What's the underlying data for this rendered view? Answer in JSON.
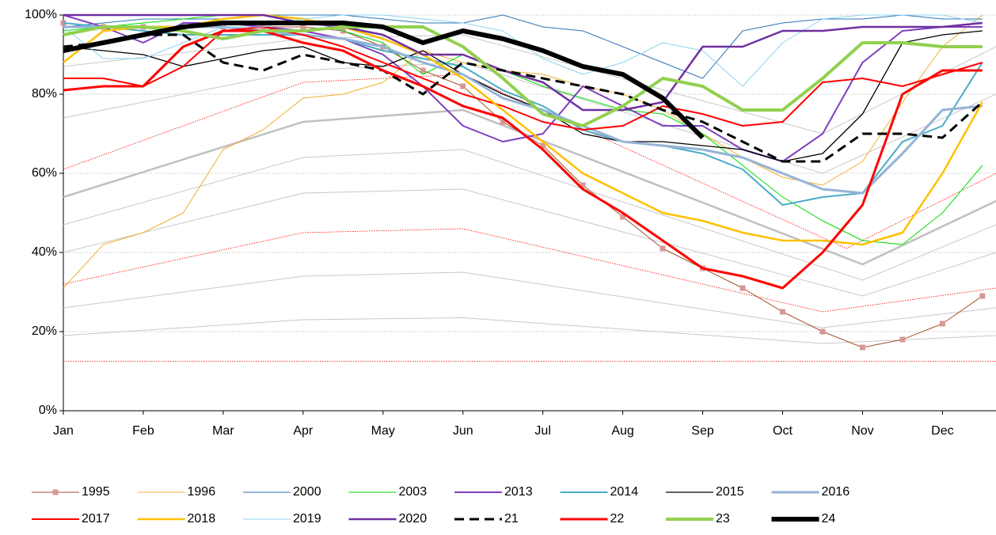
{
  "chart_data": {
    "type": "line",
    "xlim": [
      0,
      11.67
    ],
    "xticks": [
      {
        "value": 0,
        "label": "Jan"
      },
      {
        "value": 1,
        "label": "Feb"
      },
      {
        "value": 2,
        "label": "Mar"
      },
      {
        "value": 3,
        "label": "Apr"
      },
      {
        "value": 4,
        "label": "May"
      },
      {
        "value": 5,
        "label": "Jun"
      },
      {
        "value": 6,
        "label": "Jul"
      },
      {
        "value": 7,
        "label": "Aug"
      },
      {
        "value": 8,
        "label": "Sep"
      },
      {
        "value": 9,
        "label": "Oct"
      },
      {
        "value": 10,
        "label": "Nov"
      },
      {
        "value": 11,
        "label": "Dec"
      }
    ],
    "ylim": [
      0,
      100
    ],
    "yticks": [
      {
        "value": 0,
        "label": "0%"
      },
      {
        "value": 20,
        "label": "20%"
      },
      {
        "value": 40,
        "label": "40%"
      },
      {
        "value": 60,
        "label": "60%"
      },
      {
        "value": 80,
        "label": "80%"
      },
      {
        "value": 100,
        "label": "100%"
      }
    ],
    "grid": true,
    "legend": "bottom",
    "x": [
      0,
      0.5,
      1,
      1.5,
      2,
      2.5,
      3,
      3.5,
      4,
      4.5,
      5,
      5.5,
      6,
      6.5,
      7,
      7.5,
      8,
      8.5,
      9,
      9.5,
      10,
      10.5,
      11,
      11.5
    ],
    "reference_lines": [
      {
        "color": "#c8c8c8",
        "width": 1,
        "x": [
          0,
          3,
          5,
          9.5,
          11.67
        ],
        "values": [
          19,
          23,
          23.5,
          17,
          19
        ]
      },
      {
        "color": "#c8c8c8",
        "width": 1,
        "x": [
          0,
          3,
          5,
          9.5,
          11.67
        ],
        "values": [
          26,
          34,
          35,
          21,
          26
        ]
      },
      {
        "color": "#c8c8c8",
        "width": 1,
        "x": [
          0,
          3,
          5,
          10,
          11.67
        ],
        "values": [
          40,
          55,
          56,
          29,
          40
        ]
      },
      {
        "color": "#c8c8c8",
        "width": 1,
        "x": [
          0,
          3,
          5,
          10,
          11.67
        ],
        "values": [
          47,
          64,
          66,
          33,
          47
        ]
      },
      {
        "color": "#c0c0c0",
        "width": 2.5,
        "x": [
          0,
          3,
          5,
          10,
          11.67
        ],
        "values": [
          54,
          73,
          76,
          37,
          53
        ]
      },
      {
        "color": "#c8c8c8",
        "width": 1,
        "x": [
          0,
          3,
          5,
          9.5,
          11.67
        ],
        "values": [
          74,
          86,
          88,
          60,
          80
        ]
      },
      {
        "color": "#c8c8c8",
        "width": 1,
        "x": [
          0,
          3,
          5,
          9.5,
          11.67
        ],
        "values": [
          87,
          94,
          95,
          70,
          92
        ]
      },
      {
        "color": "#ff0000",
        "width": 0.8,
        "dotted": true,
        "x": [
          0,
          3,
          5,
          9.8,
          11.67
        ],
        "values": [
          61,
          83,
          85,
          41,
          60
        ]
      },
      {
        "color": "#ff0000",
        "width": 0.8,
        "dotted": true,
        "x": [
          0,
          3,
          5,
          9.5,
          11.67
        ],
        "values": [
          32,
          45,
          46,
          25,
          31
        ]
      },
      {
        "color": "#ff0000",
        "width": 0.8,
        "dotted": true,
        "x": [
          0,
          11.67
        ],
        "values": [
          12.5,
          12.5
        ]
      }
    ],
    "series": [
      {
        "name": "1995",
        "color": "#a0522d",
        "marker": "square",
        "marker_color": "#d99795",
        "width": 1,
        "values": [
          98,
          97,
          97,
          97,
          97,
          97,
          97,
          96,
          92,
          86,
          82,
          73,
          67,
          57,
          49,
          41,
          36,
          31,
          25,
          20,
          16,
          18,
          22,
          29
        ]
      },
      {
        "name": "1996",
        "color": "#f0b030",
        "width": 1,
        "values": [
          31,
          42,
          45,
          50,
          66,
          71,
          79,
          80,
          83,
          91,
          88,
          86,
          85,
          82,
          80,
          76,
          70,
          64,
          59,
          57,
          63,
          78,
          92,
          100
        ]
      },
      {
        "name": "2000",
        "color": "#2e75b6",
        "width": 1,
        "values": [
          97,
          98,
          99,
          99,
          99,
          100,
          100,
          100,
          99,
          98,
          98,
          100,
          97,
          96,
          92,
          88,
          84,
          96,
          98,
          99,
          99,
          100,
          99,
          99
        ]
      },
      {
        "name": "2003",
        "color": "#00dd00",
        "width": 1,
        "values": [
          96,
          97,
          98,
          99,
          100,
          100,
          99,
          96,
          93,
          85,
          90,
          86,
          82,
          79,
          76,
          75,
          70,
          62,
          54,
          48,
          43,
          42,
          50,
          62
        ]
      },
      {
        "name": "2013",
        "color": "#7f3fbf",
        "width": 2,
        "values": [
          100,
          97,
          93,
          98,
          98,
          97,
          96,
          94,
          90,
          82,
          72,
          68,
          70,
          82,
          77,
          72,
          72,
          66,
          63,
          70,
          88,
          96,
          97,
          97
        ]
      },
      {
        "name": "2014",
        "color": "#4bacc6",
        "width": 2,
        "values": [
          98,
          97,
          96,
          95,
          95,
          95,
          95,
          94,
          91,
          89,
          87,
          81,
          77,
          71,
          68,
          67,
          65,
          61,
          52,
          54,
          55,
          68,
          72,
          88
        ]
      },
      {
        "name": "2015",
        "color": "#000000",
        "width": 1.3,
        "values": [
          92,
          91,
          90,
          87,
          89,
          91,
          92,
          88,
          87,
          91,
          85,
          80,
          76,
          70,
          68,
          68,
          67,
          66,
          63,
          65,
          75,
          93,
          95,
          96
        ]
      },
      {
        "name": "2016",
        "color": "#95b3d7",
        "width": 3,
        "values": [
          97,
          97,
          97,
          97,
          97,
          96,
          95,
          94,
          92,
          88,
          85,
          79,
          76,
          72,
          68,
          67,
          66,
          64,
          60,
          56,
          55,
          65,
          76,
          77
        ]
      },
      {
        "name": "2017",
        "color": "#ff0000",
        "width": 2,
        "values": [
          84,
          84,
          82,
          87,
          96,
          97,
          95,
          92,
          88,
          84,
          80,
          77,
          73,
          71,
          72,
          77,
          75,
          72,
          73,
          83,
          84,
          82,
          85,
          88
        ]
      },
      {
        "name": "2018",
        "color": "#ffc000",
        "width": 2.5,
        "values": [
          88,
          96,
          97,
          97,
          99,
          100,
          99,
          97,
          94,
          90,
          84,
          76,
          68,
          60,
          55,
          50,
          48,
          45,
          43,
          43,
          42,
          45,
          60,
          78
        ]
      },
      {
        "name": "2019",
        "color": "#8dd3f0",
        "width": 1,
        "values": [
          97,
          89,
          89,
          93,
          97,
          97,
          99,
          100,
          100,
          99,
          98,
          96,
          89,
          85,
          88,
          93,
          91,
          82,
          93,
          99,
          100,
          100,
          100,
          98
        ]
      },
      {
        "name": "2020",
        "color": "#7030a0",
        "width": 2.5,
        "values": [
          100,
          100,
          100,
          100,
          100,
          100,
          98,
          97,
          95,
          90,
          90,
          86,
          83,
          76,
          76,
          78,
          92,
          92,
          96,
          96,
          97,
          97,
          97,
          98
        ]
      },
      {
        "name": "21",
        "color": "#000000",
        "width": 3,
        "dash": true,
        "values": [
          92,
          93,
          95,
          95,
          88,
          86,
          90,
          88,
          86,
          80,
          88,
          86,
          84,
          82,
          80,
          76,
          73,
          68,
          63,
          63,
          70,
          70,
          69,
          78
        ]
      },
      {
        "name": "22",
        "color": "#ff0000",
        "width": 3,
        "values": [
          81,
          82,
          82,
          92,
          96,
          96,
          93,
          91,
          86,
          82,
          77,
          74,
          66,
          56,
          50,
          43,
          36,
          34,
          31,
          40,
          52,
          80,
          86,
          86
        ]
      },
      {
        "name": "23",
        "color": "#92d050",
        "width": 4,
        "values": [
          95,
          97,
          97,
          96,
          94,
          96,
          96,
          97,
          97,
          97,
          92,
          84,
          75,
          72,
          77,
          84,
          82,
          76,
          76,
          84,
          93,
          93,
          92,
          92
        ]
      },
      {
        "name": "24",
        "color": "#000000",
        "width": 6,
        "values": [
          91,
          93,
          95,
          97,
          98,
          98,
          98,
          98,
          97,
          93,
          96,
          94,
          91,
          87,
          85,
          79,
          69,
          null,
          null,
          null,
          null,
          null,
          null,
          null
        ]
      }
    ]
  }
}
